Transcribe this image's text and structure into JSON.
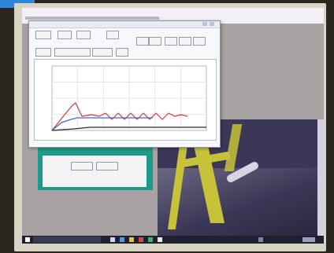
{
  "chart_data": {
    "type": "line"
  },
  "colors": {
    "panel_accent": "#1d9a8a",
    "series_main": "#d23b3b",
    "series_secondary": "#4c63c8",
    "series_third": "#2b2b2b"
  },
  "icons": {
    "start": "windows-start-icon",
    "search": "search-icon"
  }
}
